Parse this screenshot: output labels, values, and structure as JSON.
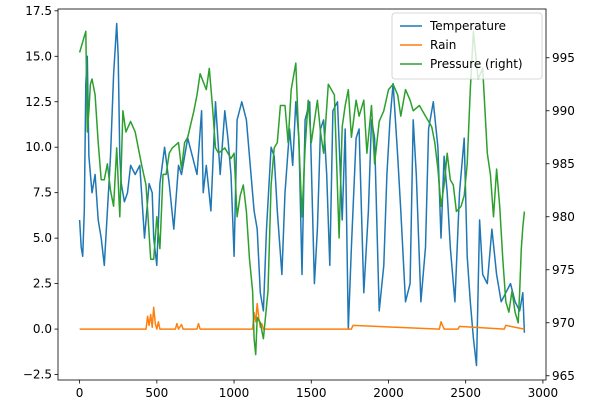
{
  "chart_data": {
    "type": "line",
    "title": "",
    "xlabel": "",
    "ylabel": "",
    "xlim": [
      -140,
      3020
    ],
    "ylim": [
      -2.8,
      17.6
    ],
    "ylim_right": [
      964.6,
      999.6
    ],
    "x_ticks": [
      0,
      500,
      1000,
      1500,
      2000,
      2500,
      3000
    ],
    "y_ticks": [
      -2.5,
      0.0,
      2.5,
      5.0,
      7.5,
      10.0,
      12.5,
      15.0,
      17.5
    ],
    "y_tick_labels": [
      "−2.5",
      "0.0",
      "2.5",
      "5.0",
      "7.5",
      "10.0",
      "12.5",
      "15.0",
      "17.5"
    ],
    "y_ticks_right": [
      965,
      970,
      975,
      980,
      985,
      990,
      995
    ],
    "legend_position": "upper right",
    "grid": false,
    "series": [
      {
        "name": "Temperature",
        "axis": "left",
        "color": "#1f77b4",
        "x": [
          0,
          10,
          20,
          30,
          40,
          50,
          60,
          80,
          100,
          120,
          140,
          160,
          180,
          200,
          220,
          240,
          250,
          260,
          270,
          290,
          310,
          330,
          360,
          390,
          420,
          450,
          470,
          480,
          500,
          520,
          550,
          580,
          610,
          640,
          660,
          700,
          730,
          760,
          790,
          800,
          820,
          850,
          880,
          910,
          940,
          960,
          980,
          1000,
          1020,
          1050,
          1080,
          1110,
          1130,
          1150,
          1170,
          1190,
          1210,
          1240,
          1260,
          1280,
          1310,
          1330,
          1360,
          1380,
          1400,
          1420,
          1440,
          1460,
          1490,
          1520,
          1540,
          1560,
          1580,
          1600,
          1620,
          1640,
          1670,
          1700,
          1720,
          1740,
          1760,
          1790,
          1810,
          1840,
          1870,
          1890,
          1910,
          1940,
          1970,
          1990,
          2010,
          2030,
          2060,
          2080,
          2110,
          2140,
          2160,
          2180,
          2210,
          2240,
          2260,
          2290,
          2320,
          2340,
          2360,
          2380,
          2400,
          2430,
          2460,
          2490,
          2510,
          2530,
          2550,
          2570,
          2590,
          2610,
          2640,
          2670,
          2700,
          2730,
          2760,
          2790,
          2820,
          2850,
          2870,
          2880
        ],
        "values": [
          6.0,
          4.5,
          4.0,
          6.5,
          13.5,
          15.0,
          9.5,
          7.5,
          8.5,
          6.0,
          5.0,
          3.5,
          6.5,
          9.5,
          14.0,
          16.8,
          15.0,
          9.5,
          8.0,
          7.0,
          7.5,
          9.0,
          8.5,
          9.0,
          5.0,
          8.0,
          7.5,
          5.0,
          3.5,
          8.0,
          10.0,
          8.0,
          5.5,
          9.0,
          8.5,
          10.5,
          9.5,
          8.5,
          12.0,
          7.5,
          9.0,
          6.5,
          12.5,
          8.5,
          12.0,
          10.5,
          8.5,
          4.0,
          11.5,
          12.5,
          11.5,
          8.5,
          6.5,
          5.5,
          2.0,
          1.0,
          5.5,
          10.0,
          9.5,
          6.5,
          3.0,
          7.5,
          11.0,
          9.0,
          12.5,
          10.5,
          3.0,
          11.5,
          12.5,
          2.5,
          5.5,
          11.0,
          11.5,
          8.5,
          3.5,
          12.0,
          12.5,
          6.0,
          11.0,
          0.0,
          4.5,
          10.5,
          11.0,
          2.0,
          6.5,
          11.5,
          10.5,
          1.0,
          3.5,
          8.5,
          11.5,
          13.5,
          9.5,
          6.5,
          1.5,
          2.5,
          11.5,
          8.5,
          1.5,
          4.5,
          11.0,
          12.5,
          10.0,
          5.0,
          9.5,
          7.5,
          4.5,
          1.5,
          7.5,
          10.5,
          4.0,
          1.5,
          -0.5,
          -2.0,
          6.0,
          3.0,
          2.5,
          5.5,
          3.0,
          1.5,
          2.0,
          2.5,
          1.5,
          1.0,
          2.0,
          -0.2
        ]
      },
      {
        "name": "Rain",
        "axis": "left",
        "color": "#ff7f0e",
        "x": [
          0,
          430,
          440,
          450,
          460,
          470,
          480,
          490,
          500,
          510,
          520,
          530,
          620,
          630,
          640,
          660,
          670,
          760,
          770,
          780,
          1120,
          1130,
          1140,
          1150,
          1160,
          1170,
          1180,
          1190,
          1760,
          1770,
          2330,
          2340,
          2350,
          2360,
          2450,
          2460,
          2750,
          2760,
          2880
        ],
        "values": [
          0.0,
          0.0,
          0.7,
          0.2,
          0.8,
          0.1,
          1.2,
          0.3,
          0.0,
          0.4,
          0.0,
          0.0,
          0.0,
          0.3,
          0.0,
          0.25,
          0.0,
          0.0,
          0.3,
          0.0,
          0.0,
          0.9,
          0.4,
          1.4,
          0.6,
          0.1,
          0.3,
          0.0,
          0.0,
          0.2,
          0.0,
          0.4,
          0.2,
          0.0,
          0.0,
          0.15,
          0.0,
          0.2,
          0.0
        ]
      },
      {
        "name": "Pressure (right)",
        "axis": "right",
        "color": "#2ca02c",
        "x": [
          0,
          20,
          40,
          50,
          60,
          70,
          80,
          100,
          120,
          140,
          160,
          180,
          200,
          220,
          240,
          260,
          280,
          300,
          330,
          360,
          400,
          430,
          460,
          480,
          500,
          520,
          540,
          560,
          580,
          600,
          640,
          660,
          680,
          700,
          740,
          760,
          780,
          820,
          840,
          860,
          880,
          900,
          940,
          980,
          1000,
          1020,
          1040,
          1060,
          1080,
          1100,
          1120,
          1130,
          1140,
          1150,
          1170,
          1190,
          1220,
          1240,
          1260,
          1280,
          1300,
          1330,
          1350,
          1370,
          1400,
          1420,
          1440,
          1460,
          1480,
          1500,
          1540,
          1560,
          1580,
          1610,
          1650,
          1680,
          1700,
          1720,
          1740,
          1760,
          1790,
          1810,
          1840,
          1860,
          1890,
          1910,
          1940,
          1970,
          2000,
          2030,
          2060,
          2080,
          2110,
          2140,
          2160,
          2200,
          2240,
          2280,
          2300,
          2320,
          2340,
          2360,
          2380,
          2400,
          2420,
          2440,
          2470,
          2490,
          2510,
          2530,
          2550,
          2580,
          2610,
          2640,
          2660,
          2680,
          2700,
          2720,
          2740,
          2760,
          2780,
          2800,
          2820,
          2840,
          2850,
          2860,
          2870,
          2880
        ],
        "values": [
          995.5,
          996.5,
          997.5,
          988.0,
          990.0,
          992.5,
          993.0,
          991.5,
          987.0,
          983.5,
          983.5,
          985.0,
          982.5,
          981.0,
          986.5,
          980.0,
          990.0,
          988.0,
          989.0,
          988.0,
          985.0,
          983.0,
          976.0,
          976.0,
          980.0,
          977.0,
          984.0,
          984.0,
          986.0,
          986.5,
          987.0,
          984.5,
          987.0,
          987.5,
          990.0,
          991.5,
          993.5,
          992.0,
          994.0,
          990.5,
          986.5,
          986.0,
          986.5,
          985.5,
          986.0,
          980.0,
          982.0,
          983.0,
          980.5,
          976.0,
          973.0,
          968.5,
          967.0,
          970.5,
          970.0,
          968.5,
          973.0,
          983.0,
          986.5,
          987.0,
          990.5,
          990.5,
          987.0,
          992.0,
          994.5,
          987.0,
          980.0,
          986.5,
          991.0,
          987.0,
          991.0,
          988.0,
          986.0,
          992.5,
          991.5,
          978.0,
          988.5,
          990.5,
          992.0,
          987.5,
          991.0,
          989.5,
          991.0,
          986.0,
          990.5,
          985.0,
          989.0,
          990.0,
          992.0,
          992.5,
          991.5,
          989.5,
          992.0,
          991.0,
          990.0,
          990.5,
          989.5,
          988.5,
          987.0,
          984.5,
          981.0,
          983.0,
          986.0,
          983.5,
          983.0,
          980.5,
          981.0,
          982.0,
          985.0,
          992.0,
          997.5,
          993.0,
          994.0,
          986.0,
          984.0,
          980.0,
          984.5,
          981.0,
          976.0,
          972.0,
          971.0,
          973.0,
          971.0,
          970.0,
          973.0,
          977.0,
          979.0,
          980.5
        ]
      }
    ]
  }
}
